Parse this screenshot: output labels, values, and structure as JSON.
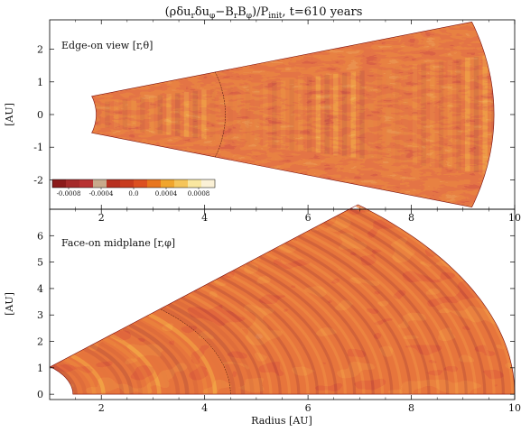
{
  "figure": {
    "title": "(ρδu_rδu_φ−B_rB_φ)/P_init, t=610 years",
    "title_parts": {
      "open": "(ρδu",
      "r1": "r",
      "mid1": "δu",
      "phi1": "φ",
      "mid2": "−B",
      "r2": "r",
      "mid3": "B",
      "phi2": "φ",
      "mid4": ")/P",
      "init": "init",
      "tail": ", t=610 years"
    }
  },
  "chart_data": [
    {
      "type": "heatmap",
      "panel": "top",
      "annotation": "Edge-on view [r,θ]",
      "xlabel": "",
      "ylabel": "[AU]",
      "xlim": [
        1,
        10
      ],
      "ylim": [
        -2.9,
        2.9
      ],
      "xticks": [
        2,
        4,
        6,
        8,
        10
      ],
      "yticks": [
        -2,
        -1,
        0,
        1,
        2
      ],
      "wedge": {
        "r_min": 1.9,
        "r_max": 9.6,
        "half_opening_rad": 0.3
      },
      "colorbar": {
        "ticks": [
          "-0.0008",
          "-0.0004",
          "0.0",
          "0.0004",
          "0.0008"
        ],
        "tick_values": [
          -0.0008,
          -0.0004,
          0.0,
          0.0004,
          0.0008
        ],
        "range": [
          -0.001,
          0.001
        ],
        "colors": [
          "#8b1a1a",
          "#a52a2a",
          "#b83232",
          "#c8aa8c",
          "#b73020",
          "#c83c1e",
          "#dc5021",
          "#e8761e",
          "#f0a52d",
          "#f5c55a",
          "#f9e7a0",
          "#fbf1d6"
        ]
      }
    },
    {
      "type": "heatmap",
      "panel": "bottom",
      "annotation": "Face-on midplane [r,φ]",
      "xlabel": "Radius [AU]",
      "ylabel": "[AU]",
      "xlim": [
        1,
        10
      ],
      "ylim": [
        -0.2,
        7.0
      ],
      "xticks": [
        2,
        4,
        6,
        8,
        10
      ],
      "yticks": [
        0,
        1,
        2,
        3,
        4,
        5,
        6
      ],
      "wedge": {
        "r_min": 1.45,
        "r_max": 10.0,
        "phi_max_rad": 0.8
      }
    }
  ]
}
